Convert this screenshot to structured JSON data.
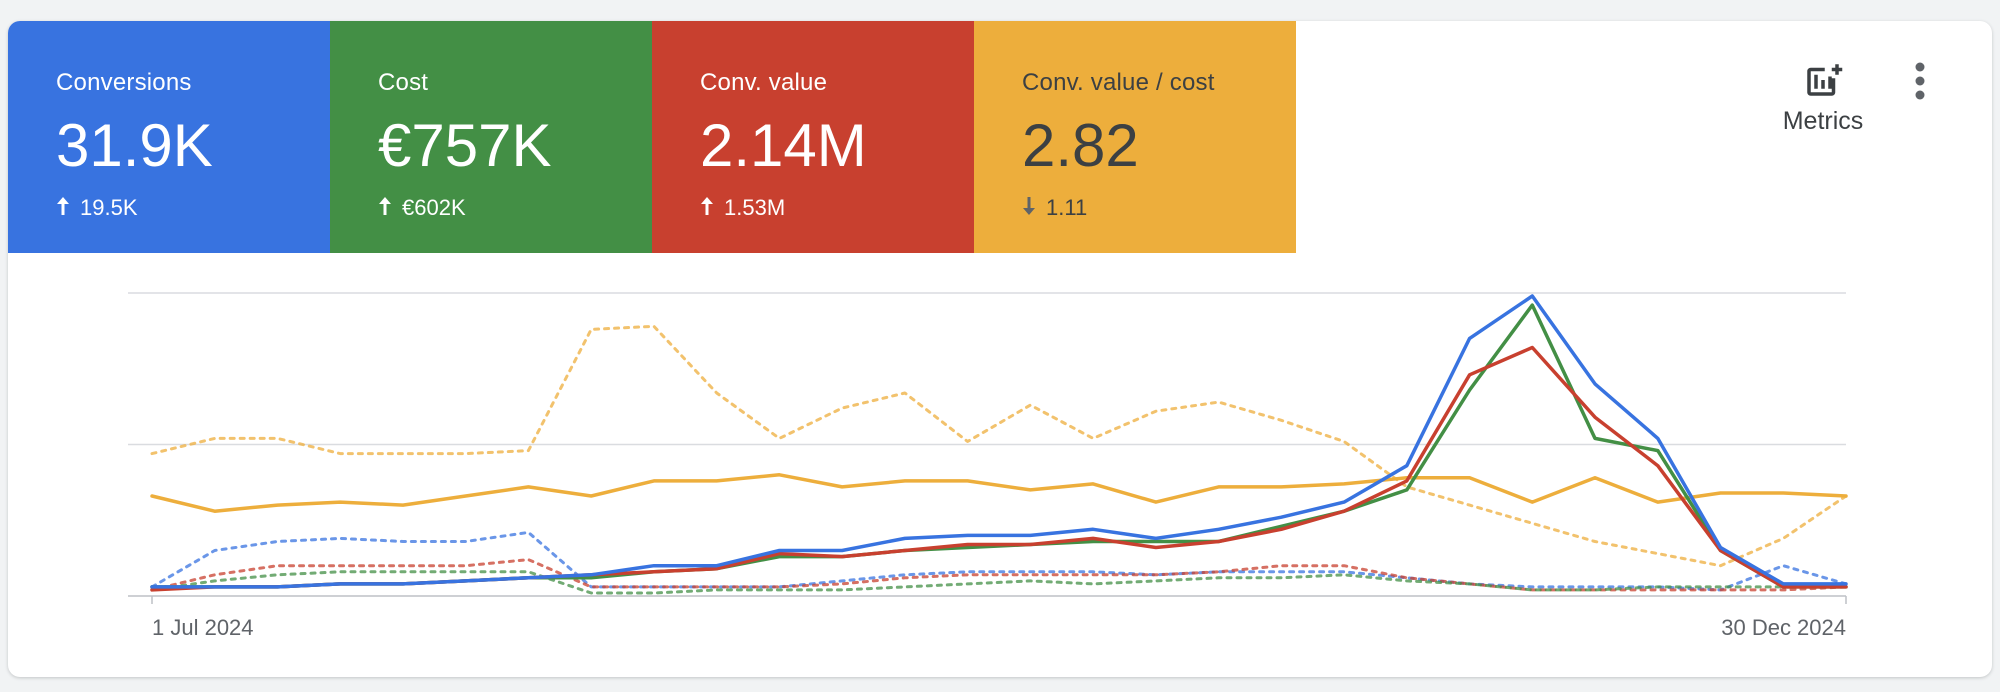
{
  "tiles": [
    {
      "label": "Conversions",
      "value": "31.9K",
      "delta": "19.5K",
      "direction": "up",
      "color": "#3873e0",
      "text_color": "#ffffff"
    },
    {
      "label": "Cost",
      "value": "€757K",
      "delta": "€602K",
      "direction": "up",
      "color": "#438f45",
      "text_color": "#ffffff"
    },
    {
      "label": "Conv. value",
      "value": "2.14M",
      "delta": "1.53M",
      "direction": "up",
      "color": "#c8402f",
      "text_color": "#ffffff"
    },
    {
      "label": "Conv. value / cost",
      "value": "2.82",
      "delta": "1.11",
      "direction": "down",
      "color": "#edae3c",
      "text_color": "#3c4043"
    }
  ],
  "toolbar": {
    "metrics_label": "Metrics",
    "metrics_icon": "add-chart-icon",
    "more_icon": "more-vert-icon"
  },
  "chart_data": {
    "type": "line",
    "x_start_label": "1 Jul 2024",
    "x_end_label": "30 Dec 2024",
    "ylim": [
      0,
      100
    ],
    "gridlines": 3,
    "series": [
      {
        "color": "#edae3c",
        "style": "dashed",
        "values": [
          47,
          52,
          52,
          47,
          47,
          47,
          48,
          88,
          89,
          67,
          52,
          62,
          67,
          51,
          63,
          52,
          61,
          64,
          58,
          51,
          36,
          30,
          24,
          18,
          14,
          10,
          19,
          33
        ]
      },
      {
        "color": "#edae3c",
        "style": "solid",
        "values": [
          33,
          28,
          30,
          31,
          30,
          33,
          36,
          33,
          38,
          38,
          40,
          36,
          38,
          38,
          35,
          37,
          31,
          36,
          36,
          37,
          39,
          39,
          31,
          39,
          31,
          34,
          34,
          33
        ]
      },
      {
        "color": "#3873e0",
        "style": "dashed",
        "values": [
          3,
          15,
          18,
          19,
          18,
          18,
          21,
          3,
          3,
          3,
          3,
          5,
          7,
          8,
          8,
          8,
          7,
          8,
          8,
          8,
          6,
          4,
          3,
          3,
          3,
          2,
          10,
          4
        ]
      },
      {
        "color": "#c8402f",
        "style": "dashed",
        "values": [
          2,
          7,
          10,
          10,
          10,
          10,
          12,
          3,
          3,
          3,
          3,
          4,
          6,
          7,
          7,
          7,
          7,
          8,
          10,
          10,
          6,
          4,
          2,
          2,
          2,
          2,
          2,
          3
        ]
      },
      {
        "color": "#438f45",
        "style": "dashed",
        "values": [
          2,
          5,
          7,
          8,
          8,
          8,
          8,
          1,
          1,
          2,
          2,
          2,
          3,
          4,
          5,
          4,
          5,
          6,
          6,
          7,
          5,
          4,
          2,
          2,
          3,
          3,
          3,
          3
        ]
      },
      {
        "color": "#438f45",
        "style": "solid",
        "values": [
          3,
          3,
          3,
          4,
          4,
          5,
          6,
          6,
          8,
          9,
          13,
          13,
          15,
          16,
          17,
          18,
          18,
          18,
          23,
          28,
          35,
          68,
          96,
          52,
          48,
          15,
          3,
          3
        ]
      },
      {
        "color": "#c8402f",
        "style": "solid",
        "values": [
          2,
          3,
          3,
          4,
          4,
          5,
          6,
          7,
          8,
          9,
          14,
          13,
          15,
          17,
          17,
          19,
          16,
          18,
          22,
          28,
          38,
          73,
          82,
          59,
          43,
          15,
          3,
          3
        ]
      },
      {
        "color": "#3873e0",
        "style": "solid",
        "values": [
          3,
          3,
          3,
          4,
          4,
          5,
          6,
          7,
          10,
          10,
          15,
          15,
          19,
          20,
          20,
          22,
          19,
          22,
          26,
          31,
          43,
          85,
          99,
          70,
          52,
          16,
          4,
          4
        ]
      }
    ]
  }
}
